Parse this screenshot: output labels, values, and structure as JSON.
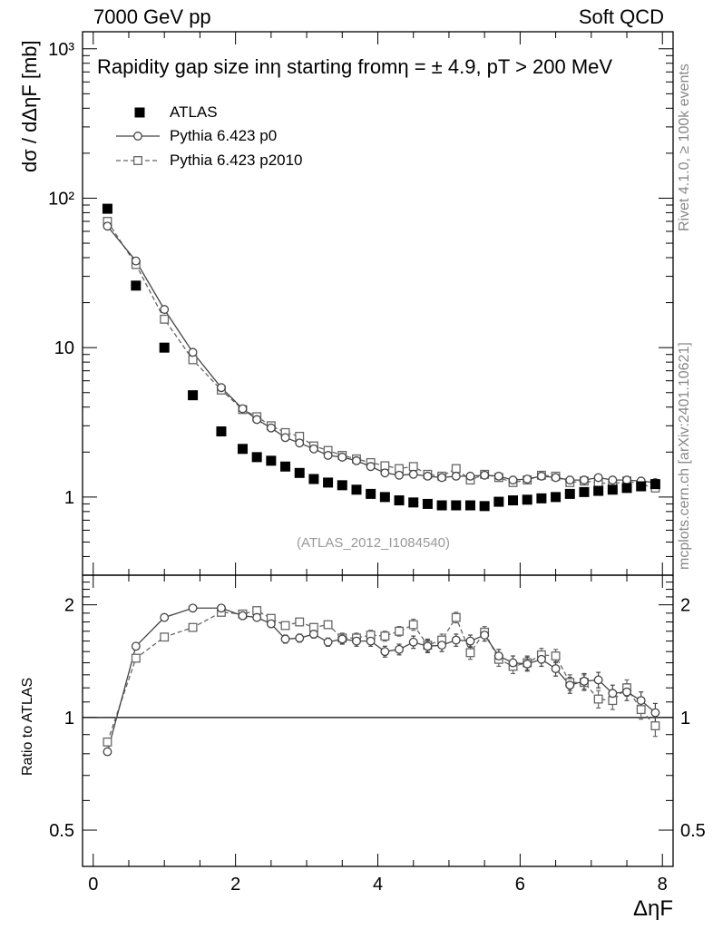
{
  "header": {
    "left": "7000 GeV pp",
    "right": "Soft QCD"
  },
  "side_labels": {
    "rivet": "Rivet 4.1.0, ≥ 100k events",
    "mcplots": "mcplots.cern.ch [arXiv:2401.10621]"
  },
  "reference_id": "(ATLAS_2012_I1084540)",
  "chart_data": [
    {
      "type": "scatter",
      "panel": "main",
      "title": "Rapidity gap size in η starting from η = ± 4.9, p_T > 200 MeV",
      "title_text": "Rapidity gap size inη starting fromη = ± 4.9, pT > 200 MeV",
      "xlabel": "Δη^F",
      "xlabel_text": "ΔηF",
      "ylabel": "dσ / dΔη^F [mb]",
      "ylabel_text": "dσ / dΔηF [mb]",
      "yscale": "log",
      "xlim": [
        -0.15,
        8.15
      ],
      "ylim": [
        0.3,
        1300
      ],
      "y_ticks": [
        {
          "value": 1,
          "label": "1"
        },
        {
          "value": 10,
          "label": "10"
        },
        {
          "value": 100,
          "label": "10²"
        },
        {
          "value": 1000,
          "label": "10³"
        }
      ],
      "x": [
        0.2,
        0.6,
        1.0,
        1.4,
        1.8,
        2.1,
        2.3,
        2.5,
        2.7,
        2.9,
        3.1,
        3.3,
        3.5,
        3.7,
        3.9,
        4.1,
        4.3,
        4.5,
        4.7,
        4.9,
        5.1,
        5.3,
        5.5,
        5.7,
        5.9,
        6.1,
        6.3,
        6.5,
        6.7,
        6.9,
        7.1,
        7.3,
        7.5,
        7.7,
        7.9
      ],
      "series": [
        {
          "name": "ATLAS",
          "marker": "filled-square",
          "values": [
            85,
            26,
            10,
            4.8,
            2.75,
            2.1,
            1.85,
            1.75,
            1.6,
            1.45,
            1.32,
            1.25,
            1.2,
            1.12,
            1.05,
            1.0,
            0.95,
            0.92,
            0.9,
            0.88,
            0.88,
            0.88,
            0.87,
            0.93,
            0.95,
            0.96,
            0.98,
            1.0,
            1.05,
            1.08,
            1.1,
            1.12,
            1.15,
            1.18,
            1.22
          ]
        },
        {
          "name": "Pythia 6.423 p0",
          "marker": "open-circle",
          "line": "solid",
          "values": [
            65,
            38,
            18,
            9.3,
            5.4,
            3.9,
            3.3,
            2.9,
            2.5,
            2.3,
            2.1,
            1.9,
            1.85,
            1.75,
            1.6,
            1.45,
            1.4,
            1.42,
            1.38,
            1.35,
            1.38,
            1.38,
            1.4,
            1.38,
            1.3,
            1.32,
            1.38,
            1.35,
            1.3,
            1.3,
            1.35,
            1.3,
            1.3,
            1.28,
            1.25
          ]
        },
        {
          "name": "Pythia 6.423 p2010",
          "marker": "open-square",
          "line": "dashed",
          "values": [
            70,
            36,
            15.5,
            8.3,
            5.2,
            3.85,
            3.45,
            3.0,
            2.7,
            2.55,
            2.2,
            2.05,
            1.9,
            1.8,
            1.7,
            1.62,
            1.55,
            1.6,
            1.42,
            1.38,
            1.55,
            1.3,
            1.42,
            1.35,
            1.25,
            1.3,
            1.4,
            1.38,
            1.25,
            1.28,
            1.25,
            1.22,
            1.28,
            1.22,
            1.15
          ]
        }
      ]
    },
    {
      "type": "line",
      "panel": "ratio",
      "ylabel": "Ratio to ATLAS",
      "xlabel": "Δη^F",
      "yscale": "log",
      "xlim": [
        -0.15,
        8.15
      ],
      "ylim": [
        0.4,
        2.4
      ],
      "reference_line": 1,
      "y_ticks": [
        {
          "value": 0.5,
          "label": "0.5"
        },
        {
          "value": 1,
          "label": "1"
        },
        {
          "value": 2,
          "label": "2"
        }
      ],
      "x_ticks": [
        {
          "value": 0,
          "label": "0"
        },
        {
          "value": 2,
          "label": "2"
        },
        {
          "value": 4,
          "label": "4"
        },
        {
          "value": 6,
          "label": "6"
        },
        {
          "value": 8,
          "label": "8"
        }
      ],
      "x": [
        0.2,
        0.6,
        1.0,
        1.4,
        1.8,
        2.1,
        2.3,
        2.5,
        2.7,
        2.9,
        3.1,
        3.3,
        3.5,
        3.7,
        3.9,
        4.1,
        4.3,
        4.5,
        4.7,
        4.9,
        5.1,
        5.3,
        5.5,
        5.7,
        5.9,
        6.1,
        6.3,
        6.5,
        6.7,
        6.9,
        7.1,
        7.3,
        7.5,
        7.7,
        7.9
      ],
      "series": [
        {
          "name": "Pythia 6.423 p0",
          "marker": "open-circle",
          "line": "solid",
          "values": [
            0.81,
            1.55,
            1.85,
            1.96,
            1.96,
            1.87,
            1.85,
            1.78,
            1.62,
            1.63,
            1.67,
            1.59,
            1.62,
            1.6,
            1.6,
            1.5,
            1.52,
            1.59,
            1.55,
            1.56,
            1.61,
            1.6,
            1.66,
            1.46,
            1.4,
            1.39,
            1.43,
            1.35,
            1.22,
            1.25,
            1.26,
            1.16,
            1.17,
            1.11,
            1.03
          ],
          "errors": [
            0.01,
            0.02,
            0.02,
            0.02,
            0.02,
            0.03,
            0.03,
            0.04,
            0.04,
            0.04,
            0.04,
            0.04,
            0.05,
            0.05,
            0.05,
            0.05,
            0.05,
            0.06,
            0.06,
            0.06,
            0.06,
            0.06,
            0.06,
            0.06,
            0.06,
            0.06,
            0.06,
            0.06,
            0.06,
            0.06,
            0.06,
            0.06,
            0.06,
            0.06,
            0.06
          ]
        },
        {
          "name": "Pythia 6.423 p2010",
          "marker": "open-square",
          "line": "dashed",
          "values": [
            0.86,
            1.44,
            1.64,
            1.74,
            1.91,
            1.89,
            1.93,
            1.84,
            1.76,
            1.8,
            1.74,
            1.77,
            1.63,
            1.63,
            1.66,
            1.65,
            1.7,
            1.77,
            1.56,
            1.61,
            1.85,
            1.49,
            1.69,
            1.43,
            1.37,
            1.4,
            1.47,
            1.46,
            1.24,
            1.24,
            1.12,
            1.11,
            1.2,
            1.05,
            0.95
          ],
          "errors": [
            0.02,
            0.02,
            0.02,
            0.02,
            0.02,
            0.03,
            0.03,
            0.04,
            0.04,
            0.04,
            0.04,
            0.04,
            0.05,
            0.05,
            0.05,
            0.05,
            0.05,
            0.06,
            0.06,
            0.06,
            0.06,
            0.06,
            0.06,
            0.06,
            0.06,
            0.06,
            0.06,
            0.06,
            0.06,
            0.06,
            0.06,
            0.06,
            0.06,
            0.06,
            0.06
          ]
        }
      ]
    }
  ]
}
